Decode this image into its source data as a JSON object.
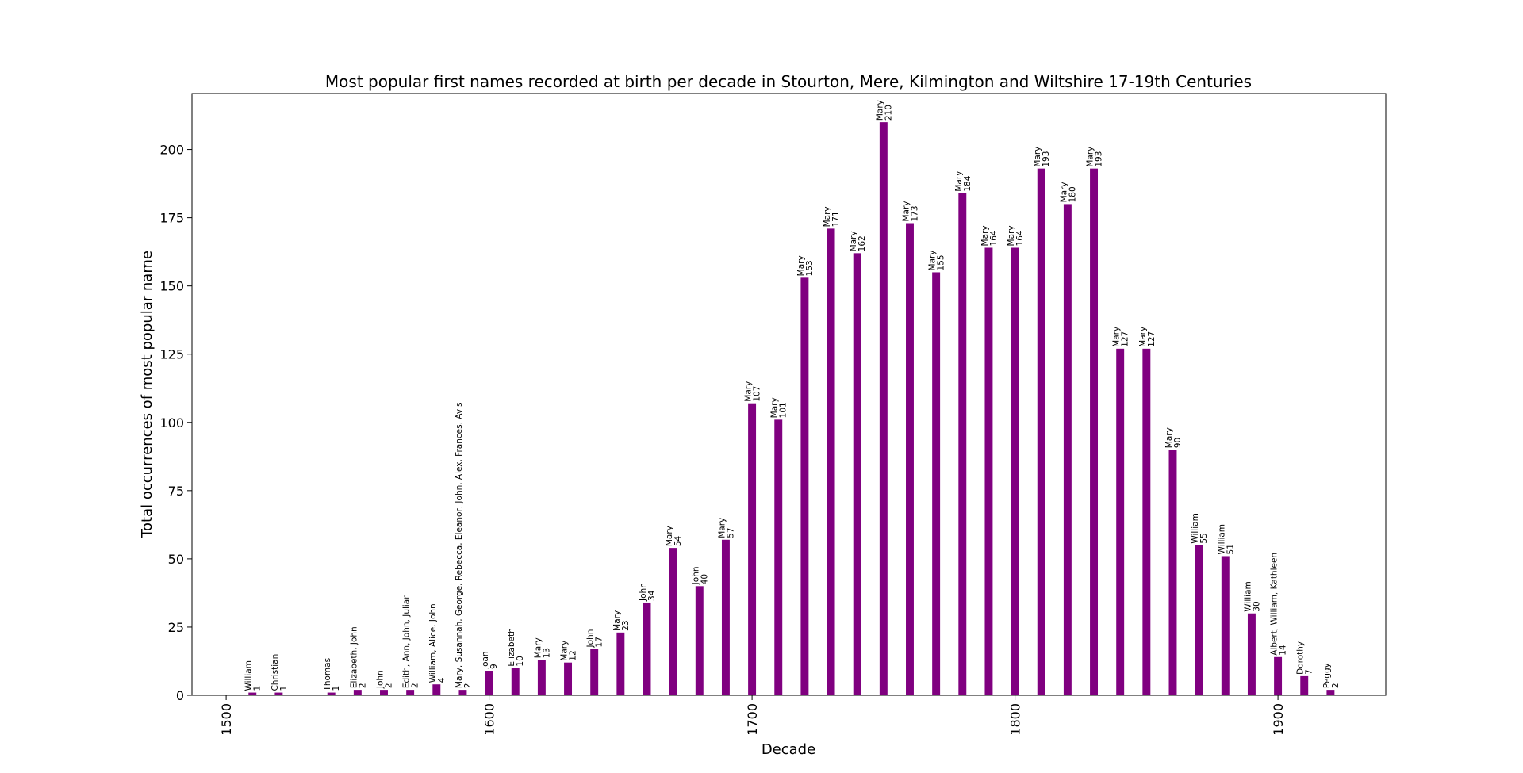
{
  "chart_data": {
    "type": "bar",
    "title": "Most popular first names recorded at birth per decade in Stourton, Mere, Kilmington and Wiltshire 17-19th Centuries",
    "xlabel": "Decade",
    "ylabel": "Total occurrences of most popular name",
    "xlim": [
      1487,
      1941
    ],
    "ylim": [
      0,
      220.5
    ],
    "xticks": [
      "1500",
      "1600",
      "1700",
      "1800",
      "1900"
    ],
    "yticks": [
      "0",
      "25",
      "50",
      "75",
      "100",
      "125",
      "150",
      "175",
      "200"
    ],
    "grid": false,
    "bar_color": "#800080",
    "bars": [
      {
        "decade": 1510,
        "name": "William",
        "count": 1
      },
      {
        "decade": 1520,
        "name": "Christian",
        "count": 1
      },
      {
        "decade": 1540,
        "name": "Thomas",
        "count": 1
      },
      {
        "decade": 1550,
        "name": "Elizabeth, John",
        "count": 2
      },
      {
        "decade": 1560,
        "name": "John",
        "count": 2
      },
      {
        "decade": 1570,
        "name": "Edith, Ann, John, Julian",
        "count": 2
      },
      {
        "decade": 1580,
        "name": "William, Alice, John",
        "count": 4
      },
      {
        "decade": 1590,
        "name": "Mary, Susannah, George, Rebecca, Eleanor, John, Alex, Frances, Avis",
        "count": 2
      },
      {
        "decade": 1600,
        "name": "Joan",
        "count": 9
      },
      {
        "decade": 1610,
        "name": "Elizabeth",
        "count": 10
      },
      {
        "decade": 1620,
        "name": "Mary",
        "count": 13
      },
      {
        "decade": 1630,
        "name": "Mary",
        "count": 12
      },
      {
        "decade": 1640,
        "name": "John",
        "count": 17
      },
      {
        "decade": 1650,
        "name": "Mary",
        "count": 23
      },
      {
        "decade": 1660,
        "name": "John",
        "count": 34
      },
      {
        "decade": 1670,
        "name": "Mary",
        "count": 54
      },
      {
        "decade": 1680,
        "name": "John",
        "count": 40
      },
      {
        "decade": 1690,
        "name": "Mary",
        "count": 57
      },
      {
        "decade": 1700,
        "name": "Mary",
        "count": 107
      },
      {
        "decade": 1710,
        "name": "Mary",
        "count": 101
      },
      {
        "decade": 1720,
        "name": "Mary",
        "count": 153
      },
      {
        "decade": 1730,
        "name": "Mary",
        "count": 171
      },
      {
        "decade": 1740,
        "name": "Mary",
        "count": 162
      },
      {
        "decade": 1750,
        "name": "Mary",
        "count": 210
      },
      {
        "decade": 1760,
        "name": "Mary",
        "count": 173
      },
      {
        "decade": 1770,
        "name": "Mary",
        "count": 155
      },
      {
        "decade": 1780,
        "name": "Mary",
        "count": 184
      },
      {
        "decade": 1790,
        "name": "Mary",
        "count": 164
      },
      {
        "decade": 1800,
        "name": "Mary",
        "count": 164
      },
      {
        "decade": 1810,
        "name": "Mary",
        "count": 193
      },
      {
        "decade": 1820,
        "name": "Mary",
        "count": 180
      },
      {
        "decade": 1830,
        "name": "Mary",
        "count": 193
      },
      {
        "decade": 1840,
        "name": "Mary",
        "count": 127
      },
      {
        "decade": 1850,
        "name": "Mary",
        "count": 127
      },
      {
        "decade": 1860,
        "name": "Mary",
        "count": 90
      },
      {
        "decade": 1870,
        "name": "William",
        "count": 55
      },
      {
        "decade": 1880,
        "name": "William",
        "count": 51
      },
      {
        "decade": 1890,
        "name": "William",
        "count": 30
      },
      {
        "decade": 1900,
        "name": "Albert, William, Kathleen",
        "count": 14
      },
      {
        "decade": 1910,
        "name": "Dorothy",
        "count": 7
      },
      {
        "decade": 1920,
        "name": "Peggy",
        "count": 2
      }
    ]
  }
}
